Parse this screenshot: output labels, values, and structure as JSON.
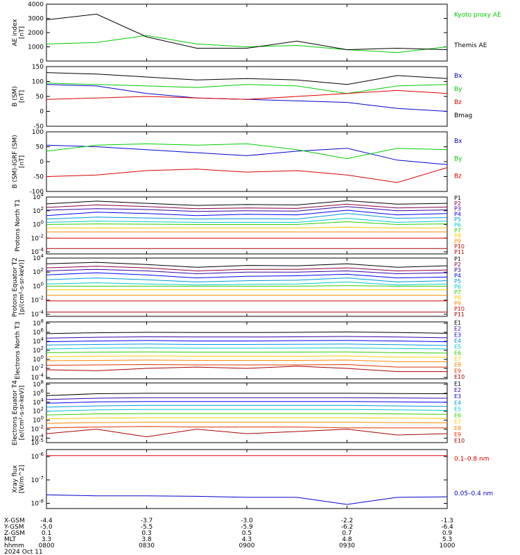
{
  "chart_data": [
    {
      "type": "line",
      "ylabel": "AE index [nT]",
      "ylim": [
        0,
        4000
      ],
      "y_ticks": [
        0,
        1000,
        2000,
        3000,
        4000
      ],
      "x": [
        800,
        815,
        830,
        845,
        900,
        915,
        930,
        945,
        1000
      ],
      "series": [
        {
          "name": "Kyoto proxy AE",
          "color": "#00cc00",
          "values": [
            1200,
            1300,
            1800,
            1200,
            1000,
            1100,
            800,
            600,
            1000
          ]
        },
        {
          "name": "Themis AE",
          "color": "#000000",
          "values": [
            2900,
            3300,
            1700,
            900,
            900,
            1400,
            800,
            900,
            800
          ]
        }
      ]
    },
    {
      "type": "line",
      "ylabel": "B (SM) [nT]",
      "ylim": [
        -50,
        150
      ],
      "y_ticks": [
        -50,
        0,
        50,
        100,
        150
      ],
      "x": [
        800,
        815,
        830,
        845,
        900,
        915,
        930,
        945,
        1000
      ],
      "series": [
        {
          "name": "Bx",
          "color": "#0000cc",
          "values": [
            90,
            85,
            60,
            45,
            40,
            35,
            30,
            10,
            0
          ]
        },
        {
          "name": "By",
          "color": "#00cc00",
          "values": [
            95,
            90,
            85,
            80,
            90,
            85,
            60,
            85,
            90
          ]
        },
        {
          "name": "Bz",
          "color": "#dd0000",
          "values": [
            40,
            45,
            50,
            45,
            40,
            50,
            60,
            70,
            60
          ]
        },
        {
          "name": "Bmag",
          "color": "#000000",
          "values": [
            130,
            125,
            115,
            105,
            110,
            105,
            90,
            120,
            110
          ]
        }
      ]
    },
    {
      "type": "line",
      "ylabel": "B (SM)-IGRF (SM) [nT]",
      "ylim": [
        -100,
        100
      ],
      "y_ticks": [
        -100,
        -50,
        0,
        50,
        100
      ],
      "x": [
        800,
        815,
        830,
        845,
        900,
        915,
        930,
        945,
        1000
      ],
      "series": [
        {
          "name": "Bx",
          "color": "#0000cc",
          "values": [
            55,
            50,
            40,
            30,
            20,
            35,
            45,
            5,
            -10
          ]
        },
        {
          "name": "By",
          "color": "#00cc00",
          "values": [
            35,
            55,
            60,
            55,
            60,
            40,
            10,
            45,
            40
          ]
        },
        {
          "name": "Bz",
          "color": "#dd0000",
          "values": [
            -50,
            -45,
            -30,
            -25,
            -35,
            -30,
            -45,
            -70,
            -20
          ]
        }
      ]
    },
    {
      "type": "line",
      "ylabel": "Protons North T1",
      "scale": "log",
      "ylim": [
        5e-05,
        10000
      ],
      "y_ticks": [
        "10^4",
        "10^2",
        "10^0",
        "10^-2",
        "10^-4"
      ],
      "x": [
        800,
        815,
        830,
        845,
        900,
        915,
        930,
        945,
        1000
      ],
      "series": [
        {
          "name": "P1",
          "color": "#000000",
          "values": [
            1000,
            2500,
            1200,
            600,
            800,
            700,
            3000,
            900,
            1200
          ]
        },
        {
          "name": "P2",
          "color": "#880044",
          "values": [
            300,
            700,
            400,
            200,
            250,
            220,
            900,
            250,
            350
          ]
        },
        {
          "name": "P3",
          "color": "#3300aa",
          "values": [
            120,
            200,
            150,
            80,
            100,
            90,
            400,
            100,
            130
          ]
        },
        {
          "name": "P4",
          "color": "#0000ff",
          "values": [
            20,
            60,
            40,
            20,
            30,
            25,
            120,
            25,
            40
          ]
        },
        {
          "name": "P5",
          "color": "#0099dd",
          "values": [
            6,
            12,
            9,
            6,
            7,
            6,
            40,
            8,
            10
          ]
        },
        {
          "name": "P6",
          "color": "#00cccc",
          "values": [
            2,
            3,
            2.5,
            2,
            2,
            2,
            8,
            2,
            3
          ]
        },
        {
          "name": "P7",
          "color": "#33cc00",
          "values": [
            1,
            1.2,
            1.1,
            1,
            1,
            1,
            2.5,
            1,
            1.2
          ]
        },
        {
          "name": "P8",
          "color": "#ffcc00",
          "values": [
            0.3,
            0.3,
            0.3,
            0.3,
            0.3,
            0.3,
            0.4,
            0.3,
            0.3
          ]
        },
        {
          "name": "P9",
          "color": "#ff8800",
          "values": [
            0.08,
            0.08,
            0.08,
            0.08,
            0.08,
            0.08,
            0.08,
            0.08,
            0.08
          ]
        },
        {
          "name": "P10",
          "color": "#dd0000",
          "values": [
            0.01,
            0.01,
            0.01,
            0.01,
            0.01,
            0.01,
            0.01,
            0.01,
            0.01
          ]
        },
        {
          "name": "P11",
          "color": "#aa0000",
          "values": [
            0.0003,
            0.0003,
            0.0003,
            0.0003,
            0.0003,
            0.0003,
            0.0003,
            0.0003,
            0.0003
          ]
        }
      ]
    },
    {
      "type": "line",
      "ylabel": "Protons Equator T2 [p/(cm²-s-sr-keV)]",
      "scale": "log",
      "ylim": [
        5e-05,
        10000
      ],
      "y_ticks": [
        "10^4",
        "10^2",
        "10^0",
        "10^-2",
        "10^-4"
      ],
      "x": [
        800,
        815,
        830,
        845,
        900,
        915,
        930,
        945,
        1000
      ],
      "series": [
        {
          "name": "P1",
          "color": "#000000",
          "values": [
            1500,
            2500,
            1200,
            500,
            900,
            800,
            1500,
            500,
            800
          ]
        },
        {
          "name": "P2",
          "color": "#880044",
          "values": [
            400,
            700,
            400,
            150,
            250,
            250,
            400,
            150,
            200
          ]
        },
        {
          "name": "P3",
          "color": "#3300aa",
          "values": [
            150,
            250,
            150,
            60,
            100,
            100,
            150,
            60,
            80
          ]
        },
        {
          "name": "P4",
          "color": "#0000ff",
          "values": [
            40,
            80,
            40,
            15,
            25,
            30,
            50,
            15,
            20
          ]
        },
        {
          "name": "P5",
          "color": "#0099dd",
          "values": [
            8,
            15,
            8,
            4,
            6,
            7,
            15,
            4,
            6
          ]
        },
        {
          "name": "P6",
          "color": "#00cccc",
          "values": [
            2,
            3,
            2,
            1.5,
            1.8,
            2,
            4,
            1.5,
            2
          ]
        },
        {
          "name": "P7",
          "color": "#33cc00",
          "values": [
            1,
            1,
            1,
            1,
            1,
            1,
            1.2,
            1,
            1
          ]
        },
        {
          "name": "P8",
          "color": "#ffcc00",
          "values": [
            0.3,
            0.3,
            0.3,
            0.3,
            0.3,
            0.3,
            0.3,
            0.3,
            0.3
          ]
        },
        {
          "name": "P9",
          "color": "#ff8800",
          "values": [
            0.05,
            0.05,
            0.05,
            0.05,
            0.05,
            0.05,
            0.05,
            0.05,
            0.05
          ]
        },
        {
          "name": "P10",
          "color": "#dd0000",
          "values": [
            0.008,
            0.008,
            0.008,
            0.008,
            0.008,
            0.008,
            0.008,
            0.008,
            0.008
          ]
        },
        {
          "name": "P11",
          "color": "#aa0000",
          "values": [
            0.0002,
            0.0002,
            0.0002,
            0.0002,
            0.0002,
            0.0002,
            0.0002,
            0.0002,
            0.0002
          ]
        }
      ]
    },
    {
      "type": "line",
      "ylabel": "Electrons North T3",
      "scale": "log",
      "ylim": [
        5e-05,
        200000000
      ],
      "y_ticks": [
        "10^8",
        "10^6",
        "10^4",
        "10^2",
        "10^0",
        "10^-2",
        "10^-4"
      ],
      "x": [
        800,
        815,
        830,
        845,
        900,
        915,
        930,
        945,
        1000
      ],
      "series": [
        {
          "name": "E1",
          "color": "#000000",
          "values": [
            500000,
            800000,
            1000000,
            900000,
            900000,
            1000000,
            1200000,
            900000,
            600000
          ]
        },
        {
          "name": "E2",
          "color": "#3300aa",
          "values": [
            50000,
            80000,
            100000,
            90000,
            90000,
            100000,
            120000,
            90000,
            60000
          ]
        },
        {
          "name": "E3",
          "color": "#0000ff",
          "values": [
            8000,
            12000,
            15000,
            12000,
            12000,
            14000,
            16000,
            12000,
            8000
          ]
        },
        {
          "name": "E4",
          "color": "#0099dd",
          "values": [
            1500,
            2000,
            2500,
            2000,
            2000,
            2200,
            2500,
            1800,
            1200
          ]
        },
        {
          "name": "E5",
          "color": "#00cccc",
          "values": [
            200,
            300,
            350,
            300,
            300,
            320,
            350,
            250,
            200
          ]
        },
        {
          "name": "E6",
          "color": "#33cc00",
          "values": [
            30,
            40,
            45,
            40,
            40,
            42,
            45,
            30,
            25
          ]
        },
        {
          "name": "E7",
          "color": "#ffcc00",
          "values": [
            4,
            5,
            6,
            5,
            5,
            5,
            6,
            3,
            3
          ]
        },
        {
          "name": "E8",
          "color": "#ff8800",
          "values": [
            0.5,
            0.6,
            0.7,
            0.6,
            0.6,
            0.6,
            0.7,
            0.3,
            0.3
          ]
        },
        {
          "name": "E9",
          "color": "#dd3300",
          "values": [
            0.05,
            0.06,
            0.07,
            0.06,
            0.06,
            0.06,
            0.07,
            0.02,
            0.02
          ]
        },
        {
          "name": "E10",
          "color": "#aa0000",
          "values": [
            0.005,
            0.003,
            0.01,
            0.02,
            0.01,
            0.03,
            0.01,
            0.002,
            0.002
          ]
        }
      ]
    },
    {
      "type": "line",
      "ylabel": "Electrons Equator T4 [e/(cm²-s-sr-keV)]",
      "scale": "log",
      "ylim": [
        1e-05,
        200000000
      ],
      "y_ticks": [
        "10^8",
        "10^6",
        "10^4",
        "10^2",
        "10^0",
        "10^-2",
        "10^-4",
        "10^-5"
      ],
      "x": [
        800,
        815,
        830,
        845,
        900,
        915,
        930,
        945,
        1000
      ],
      "series": [
        {
          "name": "E1",
          "color": "#000000",
          "values": [
            300000,
            800000,
            1000000,
            1000000,
            1000000,
            1000000,
            1000000,
            900000,
            800000
          ]
        },
        {
          "name": "E2",
          "color": "#3300aa",
          "values": [
            40000,
            80000,
            100000,
            100000,
            100000,
            100000,
            100000,
            90000,
            80000
          ]
        },
        {
          "name": "E3",
          "color": "#0000ff",
          "values": [
            6000,
            12000,
            15000,
            15000,
            15000,
            15000,
            15000,
            12000,
            10000
          ]
        },
        {
          "name": "E4",
          "color": "#0099dd",
          "values": [
            800,
            1500,
            2000,
            2000,
            2000,
            2000,
            2000,
            1500,
            1200
          ]
        },
        {
          "name": "E5",
          "color": "#00cccc",
          "values": [
            100,
            200,
            250,
            250,
            250,
            250,
            250,
            200,
            150
          ]
        },
        {
          "name": "E6",
          "color": "#33cc00",
          "values": [
            15,
            25,
            30,
            30,
            30,
            30,
            30,
            25,
            20
          ]
        },
        {
          "name": "E7",
          "color": "#ffcc00",
          "values": [
            2,
            3,
            3.5,
            3.5,
            3.5,
            3.5,
            3.5,
            3,
            2.5
          ]
        },
        {
          "name": "E8",
          "color": "#ff8800",
          "values": [
            0.2,
            0.3,
            0.35,
            0.35,
            0.35,
            0.35,
            0.35,
            0.3,
            0.25
          ]
        },
        {
          "name": "E9",
          "color": "#dd3300",
          "values": [
            0.02,
            0.03,
            0.04,
            0.03,
            0.03,
            0.03,
            0.02,
            0.02,
            0.02
          ]
        },
        {
          "name": "E10",
          "color": "#aa0000",
          "values": [
            0.001,
            0.01,
            0.0002,
            0.01,
            0.001,
            0.003,
            0.01,
            0.0005,
            0.001
          ]
        }
      ]
    },
    {
      "type": "line",
      "ylabel": "Xray flux [W/m^2]",
      "scale": "log",
      "ylim": [
        6e-09,
        2e-06
      ],
      "y_ticks": [
        "10^-6",
        "10^-7",
        "10^-8"
      ],
      "x": [
        800,
        815,
        830,
        845,
        900,
        915,
        930,
        945,
        1000
      ],
      "series": [
        {
          "name": "0.1–0.8 nm",
          "color": "#dd0000",
          "values": [
            1.1e-06,
            1.1e-06,
            1.1e-06,
            1.1e-06,
            1.1e-06,
            1.1e-06,
            1.1e-06,
            1.1e-06,
            1.1e-06
          ]
        },
        {
          "name": "0.05–0.4 nm",
          "color": "#0000cc",
          "values": [
            2.3e-08,
            2.1e-08,
            2.1e-08,
            2e-08,
            1.8e-08,
            1.8e-08,
            9e-09,
            1.8e-08,
            1.9e-08
          ]
        }
      ]
    }
  ],
  "x_axis": {
    "rows": [
      {
        "label": "X-GSM",
        "values": [
          "-4.4",
          "-3.7",
          "-3.0",
          "-2.2",
          "-1.3"
        ]
      },
      {
        "label": "Y-GSM",
        "values": [
          "-5.0",
          "-5.5",
          "-5.9",
          "-6.2",
          "-6.4"
        ]
      },
      {
        "label": "Z-GSM",
        "values": [
          "0.1",
          "0.3",
          "0.5",
          "0.7",
          "0.9"
        ]
      },
      {
        "label": "MLT",
        "values": [
          "3.3",
          "3.8",
          "4.3",
          "4.8",
          "5.3"
        ]
      },
      {
        "label": "hhmm",
        "values": [
          "0800",
          "0830",
          "0900",
          "0930",
          "1000"
        ]
      }
    ],
    "date": "2024 Oct 11"
  }
}
